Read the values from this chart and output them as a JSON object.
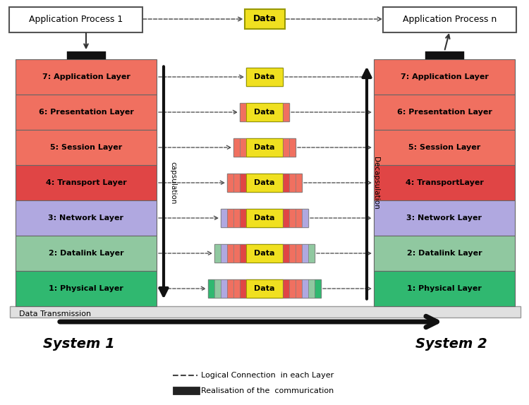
{
  "layers": [
    {
      "num": 7,
      "name": "Application Layer",
      "color": "#f07060"
    },
    {
      "num": 6,
      "name": "Presentation Layer",
      "color": "#f07060"
    },
    {
      "num": 5,
      "name": "Session Layer",
      "color": "#f07060"
    },
    {
      "num": 4,
      "name": "Transport Layer",
      "color": "#e04545"
    },
    {
      "num": 3,
      "name": "Network Layer",
      "color": "#b0a8e0"
    },
    {
      "num": 2,
      "name": "Datalink Layer",
      "color": "#90c8a0"
    },
    {
      "num": 1,
      "name": "Physical Layer",
      "color": "#30b870"
    }
  ],
  "layer4_right_name": "TransportLayer",
  "header_colors": {
    "7": [],
    "6": [
      "#f07060"
    ],
    "5": [
      "#f07060",
      "#f07060"
    ],
    "4": [
      "#f07060",
      "#f07060",
      "#e04545"
    ],
    "3": [
      "#b0a8e0",
      "#f07060",
      "#f07060",
      "#e04545"
    ],
    "2": [
      "#90c8a0",
      "#b0a8e0",
      "#f07060",
      "#f07060",
      "#e04545"
    ],
    "1": [
      "#30b870",
      "#90c8a0",
      "#b0a8e0",
      "#f07060",
      "#f07060",
      "#e04545"
    ]
  },
  "trailer_colors": {
    "7": [],
    "6": [
      "#f07060"
    ],
    "5": [
      "#f07060",
      "#f07060"
    ],
    "4": [
      "#e04545",
      "#f07060",
      "#f07060"
    ],
    "3": [
      "#e04545",
      "#f07060",
      "#f07060",
      "#b0a8e0"
    ],
    "2": [
      "#e04545",
      "#f07060",
      "#f07060",
      "#b0a8e0",
      "#90c8a0"
    ],
    "1": [
      "#e04545",
      "#f07060",
      "#f07060",
      "#b0a8e0",
      "#90c8a0",
      "#30b870"
    ]
  },
  "system1_label": "System 1",
  "system2_label": "System 2",
  "logical_label": "Logical Connection  in each Layer",
  "realisation_label": "Realisation of the  commurication",
  "data_transmission_label": "Data Transmission",
  "app1_label": "Application Process 1",
  "appn_label": "Application Process n"
}
